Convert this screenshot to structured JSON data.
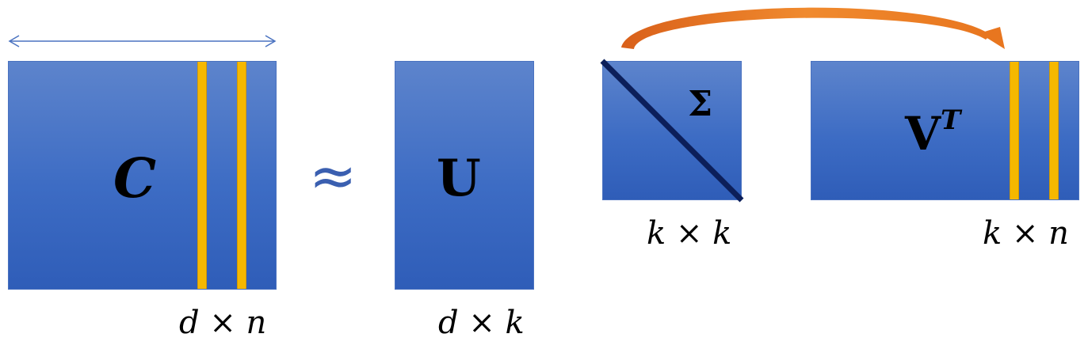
{
  "labels": {
    "c": "C",
    "approx": "≈",
    "u": "U",
    "sigma": "Σ",
    "v": "V",
    "v_sup": "T"
  },
  "dimensions": {
    "c": "d × n",
    "u": "d × k",
    "sigma": "k × k",
    "vt": "k × n"
  },
  "colors": {
    "matrix_top": "#5d84cc",
    "matrix_bottom": "#2f5db8",
    "stripe": "#f5b800",
    "diagonal": "#0c1f5a",
    "arc_arrow": "#e8761f",
    "width_arrow": "#4a72c0"
  }
}
